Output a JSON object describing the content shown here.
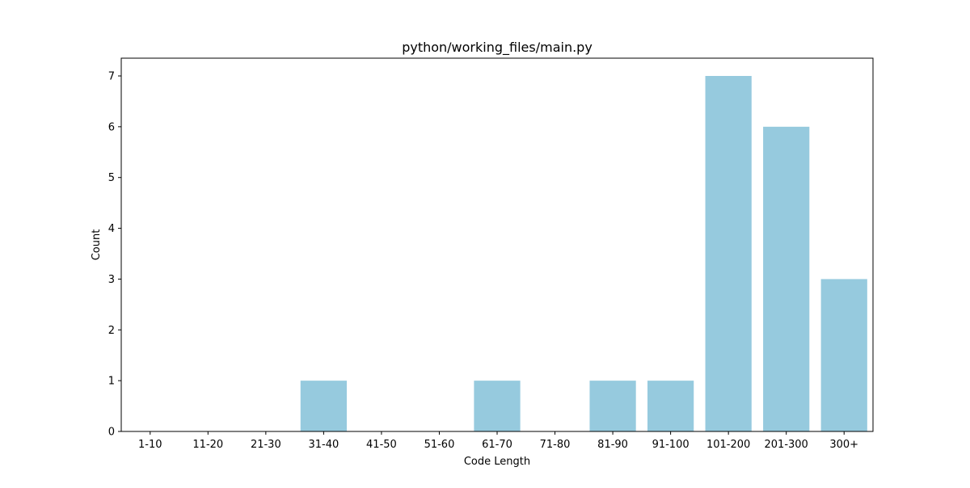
{
  "chart_data": {
    "type": "bar",
    "title": "python/working_files/main.py",
    "xlabel": "Code Length",
    "ylabel": "Count",
    "categories": [
      "1-10",
      "11-20",
      "21-30",
      "31-40",
      "41-50",
      "51-60",
      "61-70",
      "71-80",
      "81-90",
      "91-100",
      "101-200",
      "201-300",
      "300+"
    ],
    "values": [
      0,
      0,
      0,
      1,
      0,
      0,
      1,
      0,
      1,
      1,
      7,
      6,
      3
    ],
    "ylim": [
      0,
      7.35
    ],
    "yticks": [
      "0",
      "1",
      "2",
      "3",
      "4",
      "5",
      "6",
      "7"
    ],
    "bar_color": "#96cade",
    "grid": false,
    "legend": false
  }
}
